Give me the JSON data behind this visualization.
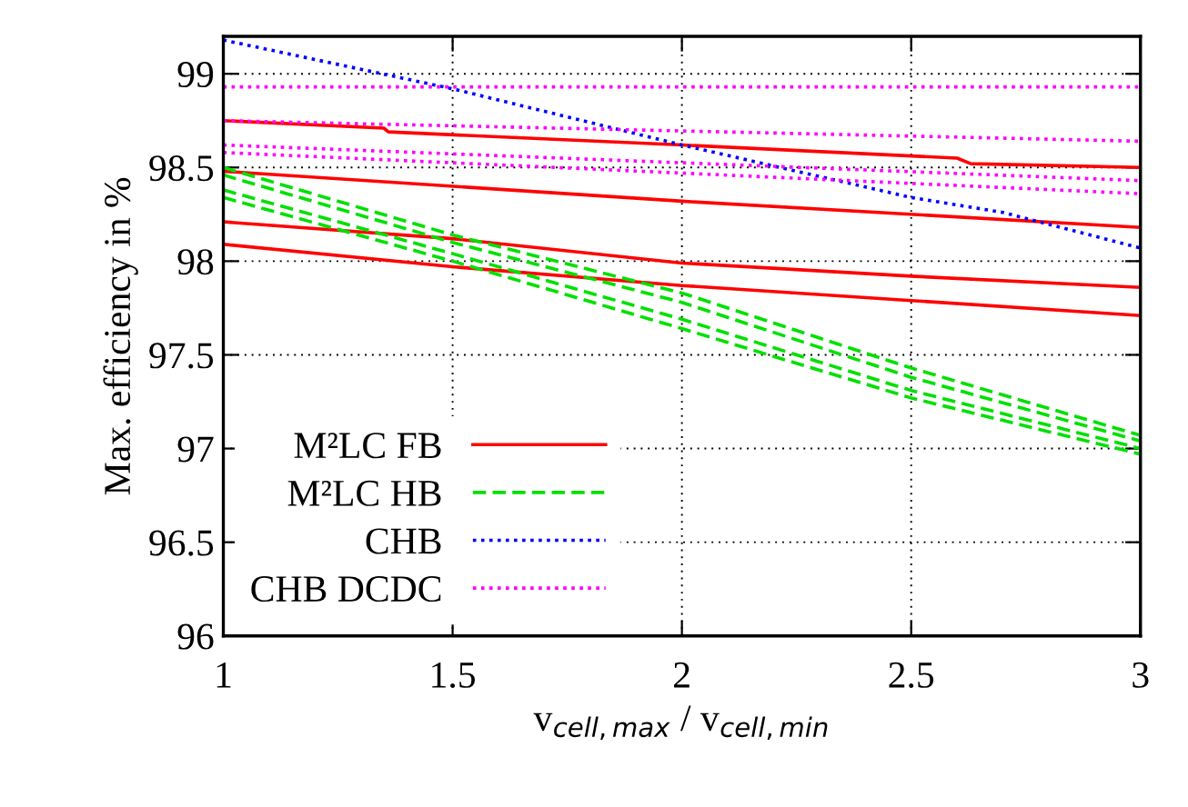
{
  "chart_data": {
    "type": "line",
    "xlabel": "v$_{cell,max}$ / v$_{cell,min}$",
    "ylabel": "Max. efficiency in %",
    "xlim": [
      1,
      3
    ],
    "ylim": [
      96,
      99.2
    ],
    "xticks": [
      1,
      1.5,
      2,
      2.5,
      3
    ],
    "yticks": [
      96,
      96.5,
      97,
      97.5,
      98,
      98.5,
      99
    ],
    "grid": true,
    "legend": "bottom left",
    "marker": "none",
    "series": [
      {
        "name": "M²LC FB",
        "color": "#ff0000",
        "line_style": "solid",
        "x": [
          1,
          1.35,
          1.36,
          2,
          2.6,
          2.63,
          3
        ],
        "values": [
          98.75,
          98.71,
          98.69,
          98.62,
          98.55,
          98.52,
          98.5
        ]
      },
      {
        "color": "#ff0000",
        "line_style": "solid",
        "x": [
          1,
          2,
          3
        ],
        "values": [
          98.48,
          98.32,
          98.18
        ]
      },
      {
        "color": "#ff0000",
        "line_style": "solid",
        "x": [
          1,
          1.5,
          2,
          2.5,
          3
        ],
        "values": [
          98.21,
          98.12,
          97.99,
          97.92,
          97.86
        ]
      },
      {
        "color": "#ff0000",
        "line_style": "solid",
        "x": [
          1,
          1.5,
          2,
          2.5,
          3
        ],
        "values": [
          98.09,
          97.97,
          97.87,
          97.79,
          97.71
        ]
      },
      {
        "name": "M²LC HB",
        "color": "#00e000",
        "line_style": "dashed",
        "x": [
          1,
          1.5,
          2,
          2.5,
          3
        ],
        "values": [
          98.5,
          98.14,
          97.83,
          97.43,
          97.07
        ]
      },
      {
        "color": "#00e000",
        "line_style": "dashed",
        "x": [
          1,
          1.5,
          2,
          2.5,
          3
        ],
        "values": [
          98.46,
          98.1,
          97.78,
          97.38,
          97.04
        ]
      },
      {
        "color": "#00e000",
        "line_style": "dashed",
        "x": [
          1,
          1.5,
          2,
          2.5,
          3
        ],
        "values": [
          98.38,
          98.04,
          97.69,
          97.31,
          97.0
        ]
      },
      {
        "color": "#00e000",
        "line_style": "dashed",
        "x": [
          1,
          1.5,
          2,
          2.5,
          3
        ],
        "values": [
          98.34,
          98.0,
          97.64,
          97.27,
          96.97
        ]
      },
      {
        "name": "CHB",
        "color": "#0000ff",
        "line_style": "dotted",
        "x": [
          1,
          1.5,
          2,
          2.5,
          2.7,
          3
        ],
        "values": [
          99.18,
          98.92,
          98.62,
          98.34,
          98.26,
          98.07
        ]
      },
      {
        "name": "CHB DCDC",
        "color": "#ff00ff",
        "line_style": "dotted",
        "x": [
          1,
          3
        ],
        "values": [
          98.93,
          98.93
        ]
      },
      {
        "color": "#ff00ff",
        "line_style": "dotted",
        "x": [
          1,
          3
        ],
        "values": [
          98.75,
          98.64
        ]
      },
      {
        "color": "#ff00ff",
        "line_style": "dotted",
        "x": [
          1,
          3
        ],
        "values": [
          98.62,
          98.43
        ]
      },
      {
        "color": "#ff00ff",
        "line_style": "dotted",
        "x": [
          1,
          3
        ],
        "values": [
          98.58,
          98.36
        ]
      }
    ]
  }
}
